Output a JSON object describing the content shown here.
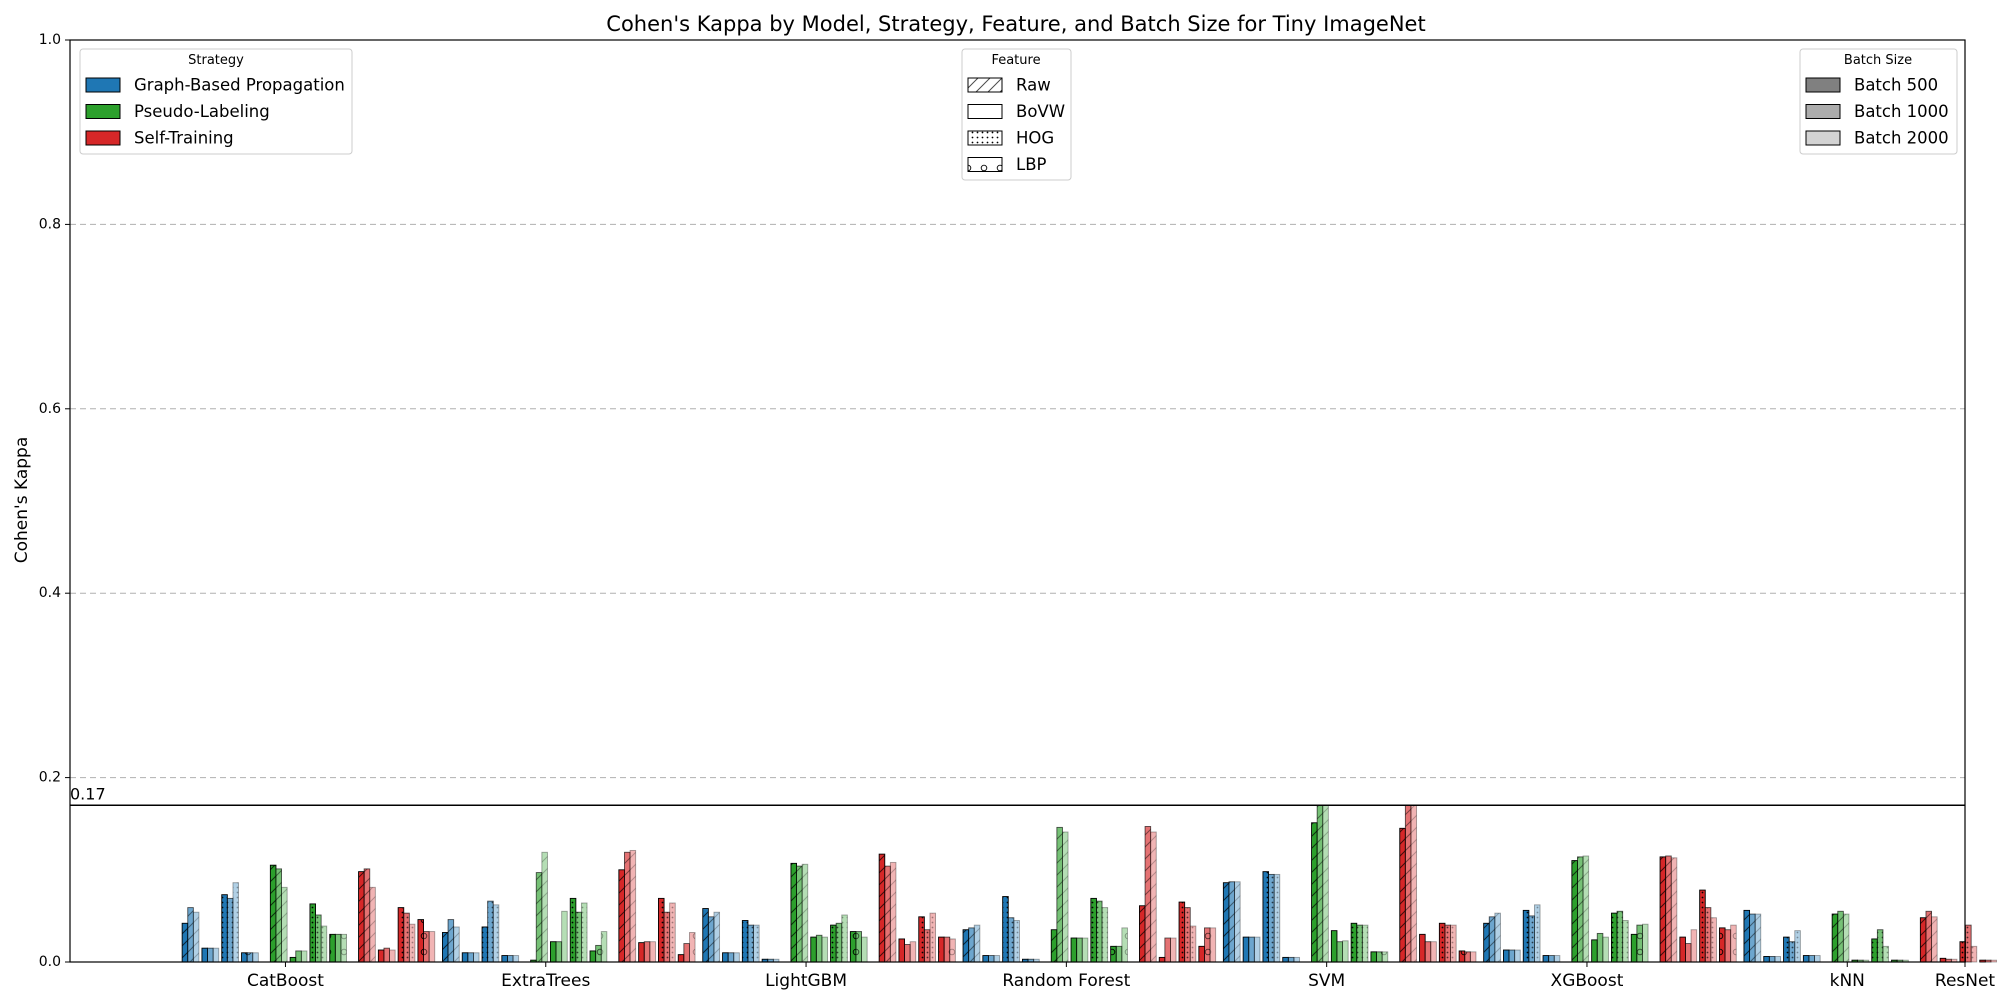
{
  "chart_data": {
    "type": "bar",
    "title": "Cohen's Kappa by Model, Strategy, Feature, and Batch Size for Tiny ImageNet",
    "ylabel": "Cohen's Kappa",
    "xlabel": "",
    "ylim": [
      0,
      1.0
    ],
    "yticks": [
      "0.0",
      "0.2",
      "0.4",
      "0.6",
      "0.8",
      "1.0"
    ],
    "grid": true,
    "axis_break": {
      "value": 0.17,
      "label": "0.17"
    },
    "categories": [
      "CatBoost",
      "ExtraTrees",
      "LightGBM",
      "Random Forest",
      "SVM",
      "XGBoost",
      "kNN",
      "ResNet"
    ],
    "strategies": [
      {
        "name": "Graph-Based Propagation",
        "color": "#1f77b4"
      },
      {
        "name": "Pseudo-Labeling",
        "color": "#2ca02c"
      },
      {
        "name": "Self-Training",
        "color": "#d62728"
      }
    ],
    "features": [
      {
        "name": "Raw",
        "pattern": "hatch-slash"
      },
      {
        "name": "BoVW",
        "pattern": "none"
      },
      {
        "name": "HOG",
        "pattern": "dots"
      },
      {
        "name": "LBP",
        "pattern": "circles"
      }
    ],
    "batch_sizes": [
      {
        "name": "Batch 500",
        "opacity": 1.0
      },
      {
        "name": "Batch 1000",
        "opacity": 0.65
      },
      {
        "name": "Batch 2000",
        "opacity": 0.35
      }
    ],
    "legends": {
      "strategy": {
        "title": "Strategy",
        "position": "top-left"
      },
      "feature": {
        "title": "Feature",
        "position": "top-center"
      },
      "batch": {
        "title": "Batch Size",
        "position": "top-right"
      }
    },
    "series_order": "values[model][strategy][feature][batch]",
    "values": [
      [
        [
          [
            0.042,
            0.059,
            0.054
          ],
          [
            0.015,
            0.015,
            0.015
          ],
          [
            0.073,
            0.069,
            0.086
          ],
          [
            0.01,
            0.01,
            0.01
          ]
        ],
        [
          [
            0.105,
            0.101,
            0.081
          ],
          [
            0.005,
            0.012,
            0.012
          ],
          [
            0.063,
            0.051,
            0.039
          ],
          [
            0.03,
            0.03,
            0.03
          ]
        ],
        [
          [
            0.098,
            0.101,
            0.081
          ],
          [
            0.013,
            0.015,
            0.013
          ],
          [
            0.059,
            0.053,
            0.041
          ],
          [
            0.046,
            0.033,
            0.033
          ]
        ]
      ],
      [
        [
          [
            0.032,
            0.046,
            0.038
          ],
          [
            0.01,
            0.01,
            0.01
          ],
          [
            0.038,
            0.066,
            0.062
          ],
          [
            0.007,
            0.007,
            0.007
          ]
        ],
        [
          [
            0.002,
            0.097,
            0.119
          ],
          [
            0.022,
            0.022,
            0.055
          ],
          [
            0.069,
            0.054,
            0.064
          ],
          [
            0.012,
            0.018,
            0.033
          ]
        ],
        [
          [
            0.1,
            0.119,
            0.121
          ],
          [
            0.021,
            0.022,
            0.022
          ],
          [
            0.069,
            0.054,
            0.064
          ],
          [
            0.008,
            0.02,
            0.032
          ]
        ]
      ],
      [
        [
          [
            0.058,
            0.049,
            0.054
          ],
          [
            0.01,
            0.01,
            0.01
          ],
          [
            0.045,
            0.04,
            0.04
          ],
          [
            0.003,
            0.003,
            0.003
          ]
        ],
        [
          [
            0.107,
            0.104,
            0.106
          ],
          [
            0.027,
            0.029,
            0.027
          ],
          [
            0.04,
            0.042,
            0.051
          ],
          [
            0.033,
            0.033,
            0.027
          ]
        ],
        [
          [
            0.117,
            0.104,
            0.108
          ],
          [
            0.025,
            0.019,
            0.022
          ],
          [
            0.049,
            0.035,
            0.053
          ],
          [
            0.027,
            0.027,
            0.025
          ]
        ]
      ],
      [
        [
          [
            0.035,
            0.037,
            0.04
          ],
          [
            0.007,
            0.007,
            0.007
          ],
          [
            0.071,
            0.048,
            0.045
          ],
          [
            0.003,
            0.003,
            0.003
          ]
        ],
        [
          [
            0.035,
            0.146,
            0.141
          ],
          [
            0.026,
            0.026,
            0.026
          ],
          [
            0.069,
            0.066,
            0.059
          ],
          [
            0.017,
            0.017,
            0.037
          ]
        ],
        [
          [
            0.061,
            0.147,
            0.141
          ],
          [
            0.005,
            0.026,
            0.026
          ],
          [
            0.065,
            0.059,
            0.039
          ],
          [
            0.017,
            0.037,
            0.037
          ]
        ]
      ],
      [
        [
          [
            0.086,
            0.087,
            0.087
          ],
          [
            0.027,
            0.027,
            0.027
          ],
          [
            0.098,
            0.095,
            0.095
          ],
          [
            0.005,
            0.005,
            0.005
          ]
        ],
        [
          [
            0.151,
            0.17,
            0.17
          ],
          [
            0.034,
            0.022,
            0.023
          ],
          [
            0.042,
            0.04,
            0.04
          ],
          [
            0.011,
            0.011,
            0.011
          ]
        ],
        [
          [
            0.145,
            0.17,
            0.17
          ],
          [
            0.03,
            0.022,
            0.022
          ],
          [
            0.042,
            0.04,
            0.04
          ],
          [
            0.012,
            0.011,
            0.011
          ]
        ]
      ],
      [
        [
          [
            0.042,
            0.049,
            0.053
          ],
          [
            0.013,
            0.013,
            0.013
          ],
          [
            0.056,
            0.05,
            0.062
          ],
          [
            0.007,
            0.007,
            0.007
          ]
        ],
        [
          [
            0.11,
            0.114,
            0.115
          ],
          [
            0.024,
            0.031,
            0.027
          ],
          [
            0.053,
            0.055,
            0.045
          ],
          [
            0.03,
            0.04,
            0.041
          ]
        ],
        [
          [
            0.114,
            0.115,
            0.113
          ],
          [
            0.027,
            0.02,
            0.035
          ],
          [
            0.078,
            0.059,
            0.048
          ],
          [
            0.037,
            0.035,
            0.04
          ]
        ]
      ],
      [
        [
          [
            0.056,
            0.052,
            0.052
          ],
          [
            0.006,
            0.006,
            0.006
          ],
          [
            0.027,
            0.022,
            0.034
          ],
          [
            0.007,
            0.007,
            0.007
          ]
        ],
        [
          [
            0.052,
            0.055,
            0.052
          ],
          [
            0.002,
            0.002,
            0.002
          ],
          [
            0.025,
            0.035,
            0.017
          ],
          [
            0.002,
            0.002,
            0.002
          ]
        ],
        [
          [
            0.048,
            0.055,
            0.049
          ],
          [
            0.004,
            0.003,
            0.003
          ],
          [
            0.022,
            0.04,
            0.017
          ],
          [
            0.002,
            0.002,
            0.002
          ]
        ]
      ],
      [
        [
          [
            0.0,
            0.0,
            0.0
          ],
          [
            0.0,
            0.0,
            0.0
          ],
          [
            0.0,
            0.0,
            0.0
          ],
          [
            0.0,
            0.0,
            0.0
          ]
        ],
        [
          [
            0.0,
            0.0,
            0.0
          ],
          [
            0.0,
            0.0,
            0.0
          ],
          [
            0.0,
            0.0,
            0.0
          ],
          [
            0.0,
            0.0,
            0.0
          ]
        ],
        [
          [
            0.0,
            0.0,
            0.0
          ],
          [
            0.0,
            0.0,
            0.0
          ],
          [
            0.0,
            0.0,
            0.0
          ],
          [
            0.0,
            0.0,
            0.0
          ]
        ]
      ]
    ]
  }
}
